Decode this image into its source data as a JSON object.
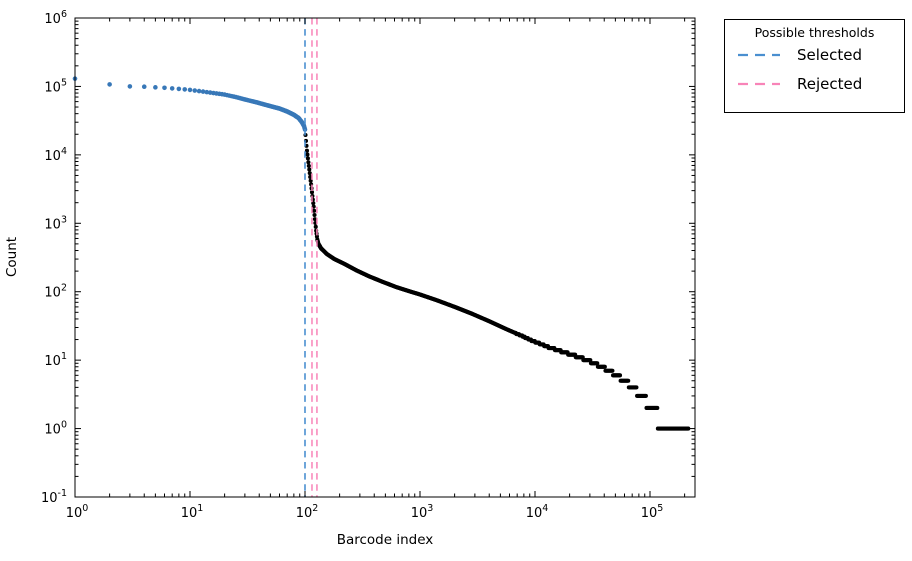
{
  "figure": {
    "background": "#ffffff",
    "frame_color": "#000000"
  },
  "legend": {
    "title": "Possible thresholds",
    "entries": [
      {
        "label": "Selected",
        "color": "#4a8fd0",
        "style": "dashed"
      },
      {
        "label": "Rejected",
        "color": "#f884b8",
        "style": "dashed"
      }
    ]
  },
  "chart_data": {
    "type": "scatter",
    "title": "",
    "xlabel": "Barcode index",
    "ylabel": "Count",
    "xscale": "log",
    "yscale": "log",
    "xlim": [
      1,
      246000
    ],
    "ylim": [
      0.1,
      1000000
    ],
    "grid": false,
    "legend_position": "upper-right-outside",
    "x_tick_exponents": [
      0,
      1,
      2,
      3,
      4,
      5
    ],
    "y_tick_exponents": [
      6,
      5,
      4,
      3,
      2,
      1,
      0,
      -1
    ],
    "series": [
      {
        "name": "selected-barcodes",
        "color": "#3878b8",
        "marker": "dot",
        "rank_range": [
          1,
          100
        ]
      },
      {
        "name": "rejected-barcodes",
        "color": "#000000",
        "marker": "dot",
        "rank_range": [
          101,
          215000
        ]
      }
    ],
    "curve_anchors_rank_count": [
      [
        1,
        130000
      ],
      [
        2,
        107000
      ],
      [
        3,
        100000
      ],
      [
        4,
        99000
      ],
      [
        5,
        97000
      ],
      [
        6,
        95500
      ],
      [
        8,
        92000
      ],
      [
        10,
        89000
      ],
      [
        13,
        84000
      ],
      [
        16,
        80000
      ],
      [
        20,
        76000
      ],
      [
        25,
        70000
      ],
      [
        30,
        64500
      ],
      [
        38,
        58500
      ],
      [
        47,
        53000
      ],
      [
        60,
        47500
      ],
      [
        70,
        43000
      ],
      [
        80,
        38500
      ],
      [
        88,
        34500
      ],
      [
        94,
        30000
      ],
      [
        98,
        26500
      ],
      [
        100,
        23500
      ],
      [
        101,
        19500
      ],
      [
        102,
        16000
      ],
      [
        104,
        11500
      ],
      [
        107,
        7800
      ],
      [
        110,
        5400
      ],
      [
        113,
        3700
      ],
      [
        116,
        2500
      ],
      [
        119,
        1750
      ],
      [
        122,
        1150
      ],
      [
        125,
        780
      ],
      [
        128,
        580
      ],
      [
        131,
        500
      ],
      [
        138,
        430
      ],
      [
        155,
        355
      ],
      [
        180,
        300
      ],
      [
        220,
        255
      ],
      [
        280,
        205
      ],
      [
        360,
        168
      ],
      [
        470,
        140
      ],
      [
        620,
        117
      ],
      [
        800,
        102
      ],
      [
        1000,
        91
      ],
      [
        1400,
        75
      ],
      [
        2000,
        60
      ],
      [
        2800,
        48
      ],
      [
        4000,
        37
      ],
      [
        5600,
        28.5
      ],
      [
        7500,
        23
      ],
      [
        10000,
        18.5
      ],
      [
        13500,
        15.2
      ],
      [
        18000,
        13.0
      ],
      [
        24000,
        11.1
      ],
      [
        32000,
        9.2
      ],
      [
        40000,
        7.6
      ],
      [
        48000,
        6.4
      ],
      [
        56000,
        5.4
      ],
      [
        66000,
        4.4
      ],
      [
        77000,
        3.5
      ],
      [
        92000,
        2.6
      ],
      [
        100000,
        2.0
      ],
      [
        116000,
        1.5
      ],
      [
        130000,
        1.0
      ],
      [
        215000,
        1.0
      ]
    ],
    "thresholds": {
      "selected_rank": 100,
      "rejected_ranks": [
        115,
        127
      ],
      "selected_color": "#4a8fd0",
      "rejected_color": "#f884b8"
    }
  }
}
